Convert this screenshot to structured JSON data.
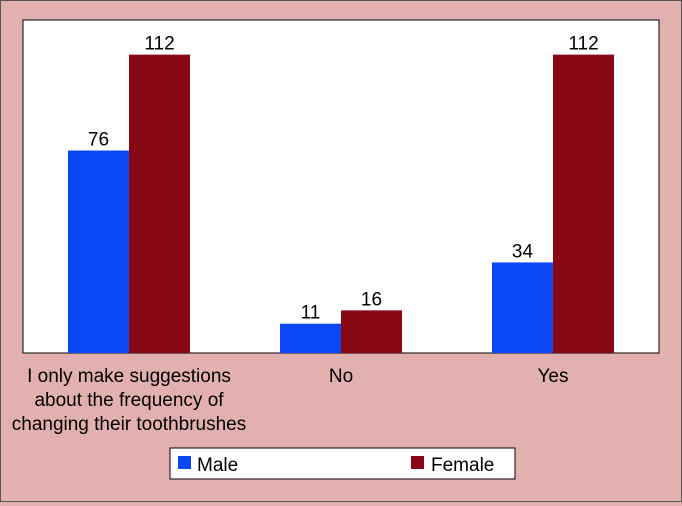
{
  "chart_data": {
    "type": "bar",
    "categories": [
      [
        "I only make suggestions",
        "about the frequency of",
        "changing their toothbrushes"
      ],
      [
        "No"
      ],
      [
        "Yes"
      ]
    ],
    "series": [
      {
        "name": "Male",
        "values": [
          76,
          11,
          34
        ],
        "color": "#0b46f7"
      },
      {
        "name": "Female",
        "values": [
          112,
          16,
          112
        ],
        "color": "#870714"
      }
    ],
    "ylim": [
      0,
      125
    ],
    "grid": false,
    "legend": "bottom",
    "title": "",
    "xlabel": "",
    "ylabel": ""
  },
  "colors": {
    "background": "#e3b0b0",
    "plot_area": "#ffffff"
  }
}
